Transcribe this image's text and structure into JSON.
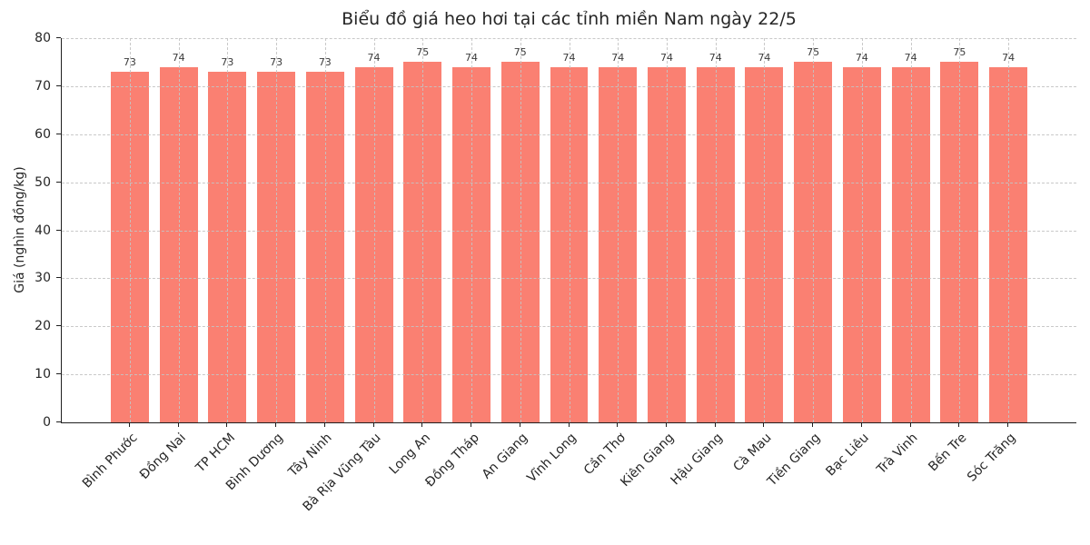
{
  "chart_data": {
    "type": "bar",
    "title": "Biểu đồ giá heo hơi tại các tỉnh miền Nam ngày 22/5",
    "xlabel": "",
    "ylabel": "Giá (nghìn đồng/kg)",
    "categories": [
      "Bình Phước",
      "Đồng Nai",
      "TP HCM",
      "Bình Dương",
      "Tây Ninh",
      "Bà Rịa Vũng Tàu",
      "Long An",
      "Đồng Tháp",
      "An Giang",
      "Vĩnh Long",
      "Cần Thơ",
      "Kiên Giang",
      "Hậu Giang",
      "Cà Mau",
      "Tiền Giang",
      "Bạc Liêu",
      "Trà Vinh",
      "Bến Tre",
      "Sóc Trăng"
    ],
    "values": [
      73,
      74,
      73,
      73,
      73,
      74,
      75,
      74,
      75,
      74,
      74,
      74,
      74,
      74,
      75,
      74,
      74,
      75,
      74
    ],
    "ylim": [
      0,
      80
    ],
    "yticks": [
      0,
      10,
      20,
      30,
      40,
      50,
      60,
      70,
      80
    ],
    "bar_color": "#FA8072",
    "grid": "dashed",
    "value_labels": true,
    "legend": "none"
  }
}
